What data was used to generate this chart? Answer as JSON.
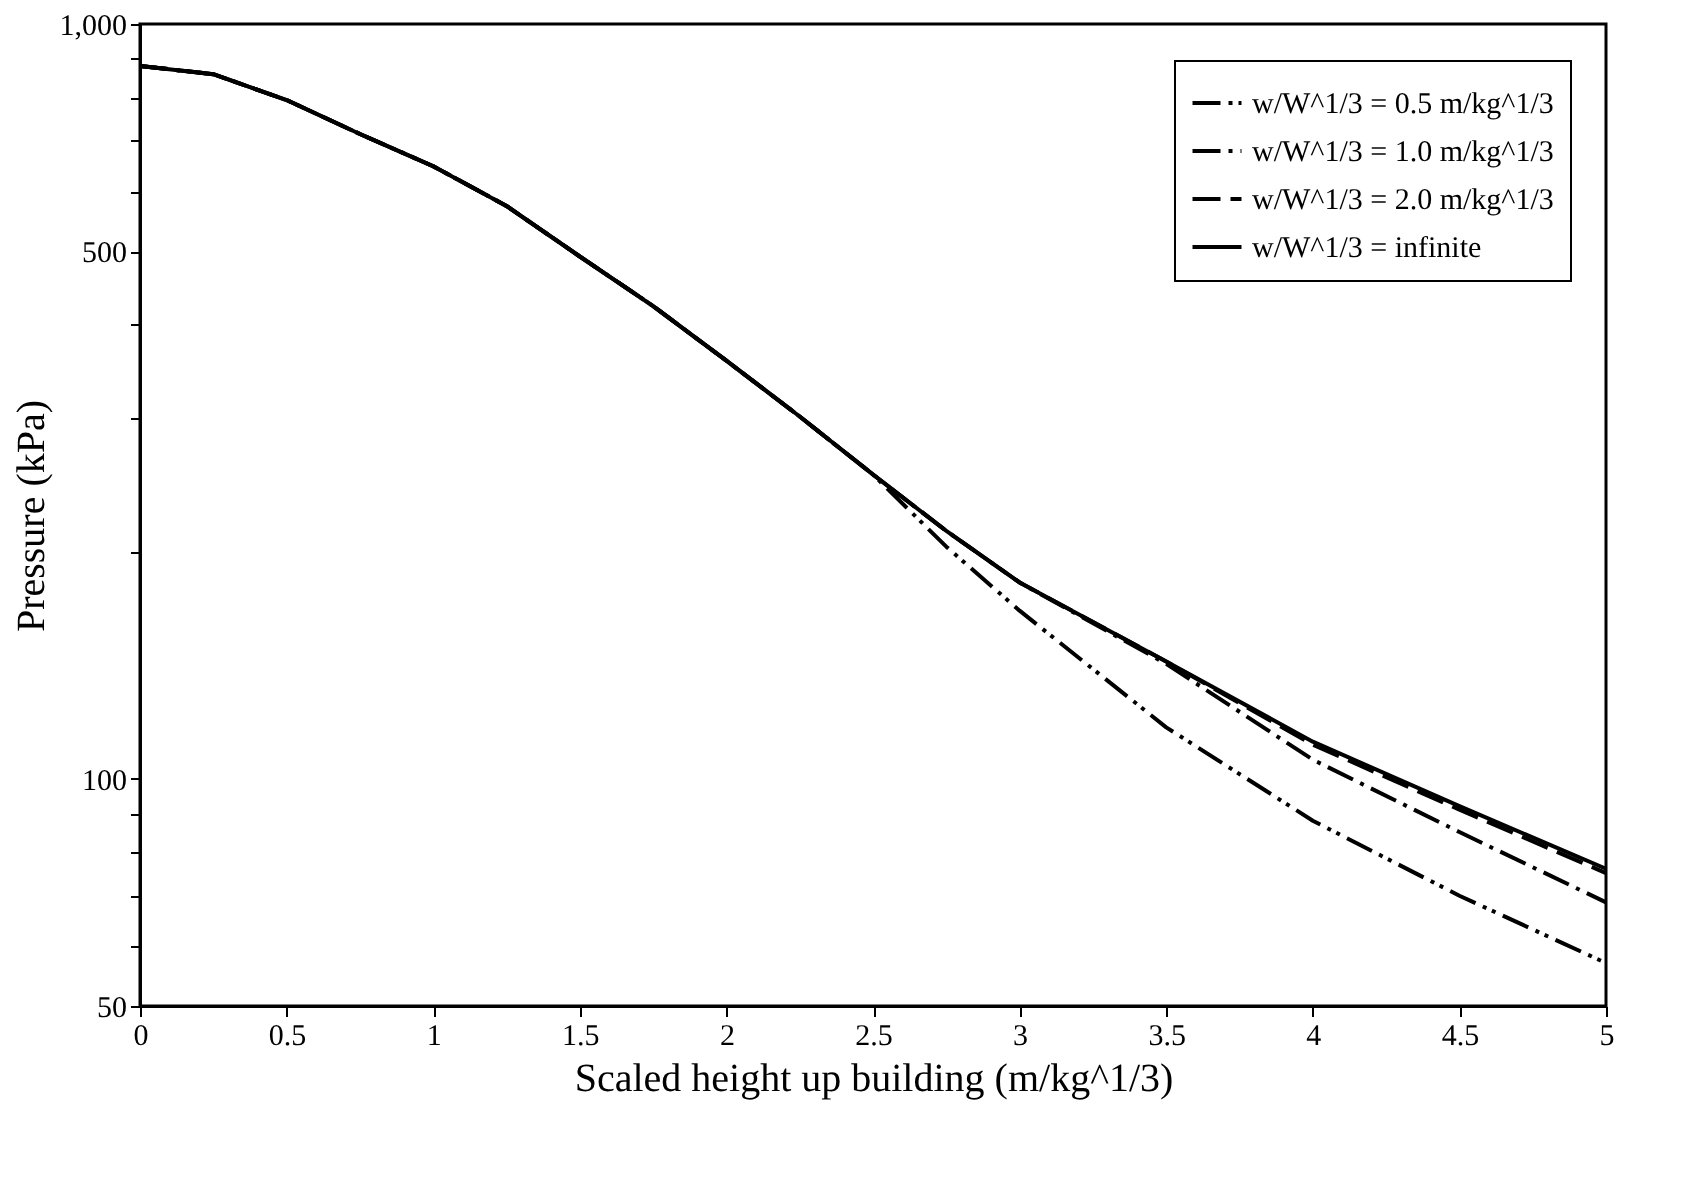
{
  "chart_data": {
    "type": "line",
    "xlabel": "Scaled height up building (m/kg^1/3)",
    "ylabel": "Pressure (kPa)",
    "log": true,
    "grid": false,
    "legend": "top right",
    "marker": "none",
    "xlim": [
      0,
      5
    ],
    "xticks": [
      0,
      0.5,
      1,
      1.5,
      2,
      2.5,
      3,
      3.5,
      4,
      4.5,
      5
    ],
    "ylim": [
      50,
      1000
    ],
    "yticks": [
      50,
      {
        "value": 60,
        "label": null
      },
      {
        "value": 70,
        "label": null
      },
      {
        "value": 80,
        "label": null
      },
      {
        "value": 90,
        "label": null
      },
      100,
      {
        "value": 200,
        "label": null
      },
      {
        "value": 300,
        "label": null
      },
      {
        "value": 400,
        "label": null
      },
      500,
      {
        "value": 600,
        "label": null
      },
      {
        "value": 700,
        "label": null
      },
      {
        "value": 800,
        "label": null
      },
      {
        "value": 900,
        "label": null
      },
      {
        "value": 1000,
        "label": "1,000"
      }
    ],
    "x": [
      0,
      0.25,
      0.5,
      0.75,
      1,
      1.25,
      1.5,
      1.75,
      2,
      2.25,
      2.5,
      2.75,
      3,
      3.5,
      4,
      4.5,
      5
    ],
    "series": [
      {
        "name": "w/W^1/3 = 0.5 m/kg^1/3",
        "color": "#000000",
        "line_style": "dashdotdot",
        "values": [
          880,
          858,
          793,
          715,
          648,
          574,
          492,
          423,
          358,
          302,
          253,
          203,
          167,
          117,
          88,
          70,
          57
        ]
      },
      {
        "name": "w/W^1/3 = 1.0 m/kg^1/3",
        "color": "#000000",
        "line_style": "dashdot",
        "values": [
          880,
          858,
          793,
          715,
          648,
          574,
          492,
          423,
          358,
          302,
          253,
          213,
          182,
          142,
          106,
          85,
          68.6
        ]
      },
      {
        "name": "w/W^1/3 = 2.0 m/kg^1/3",
        "color": "#000000",
        "line_style": "dashed",
        "values": [
          880,
          858,
          793,
          715,
          648,
          574,
          492,
          423,
          358,
          302,
          253,
          213,
          182,
          143,
          111,
          91,
          75
        ]
      },
      {
        "name": "w/W^1/3 = infinite",
        "color": "#000000",
        "line_style": "solid",
        "values": [
          880,
          858,
          793,
          715,
          648,
          574,
          492,
          423,
          358,
          302,
          253,
          213,
          182,
          143,
          112,
          92,
          76
        ]
      }
    ]
  }
}
